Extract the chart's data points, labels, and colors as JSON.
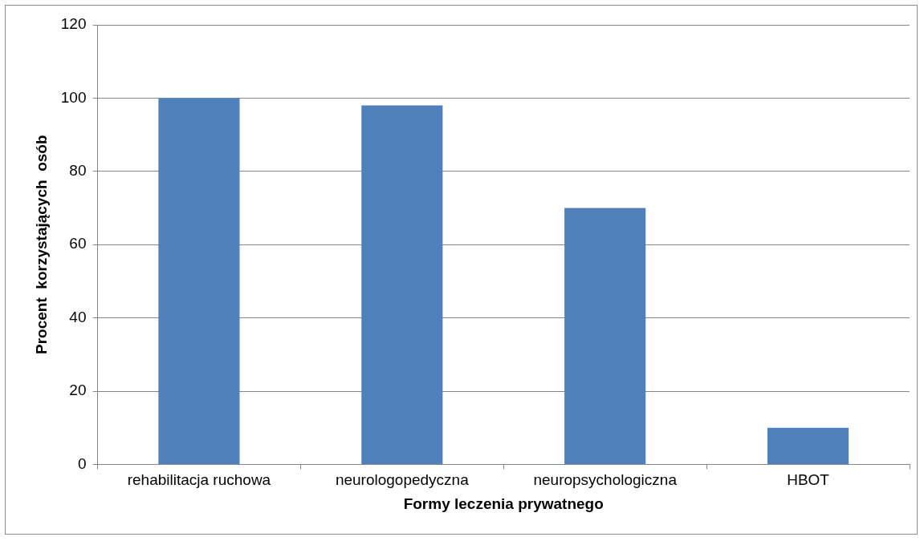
{
  "chart_data": {
    "type": "bar",
    "xlabel": "Formy leczenia prywatnego",
    "ylabel": "Procent  korzystających  osób",
    "categories": [
      "rehabilitacja ruchowa",
      "neurologopedyczna",
      "neuropsychologiczna",
      "HBOT"
    ],
    "values": [
      100,
      98,
      70,
      10
    ],
    "color": "#4f81bd",
    "ylim": [
      0,
      120
    ],
    "yticks": [
      0,
      20,
      40,
      60,
      80,
      100,
      120
    ],
    "grid": "y",
    "legend": false
  }
}
